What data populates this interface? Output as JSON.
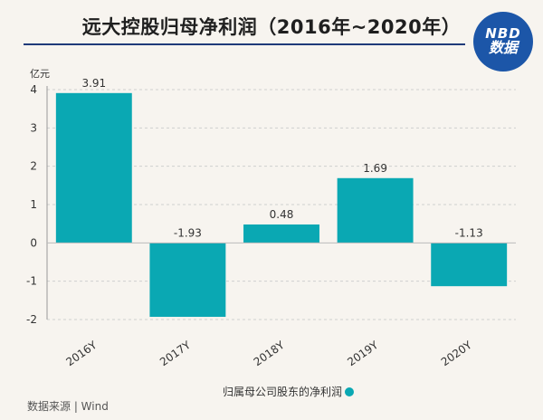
{
  "header": {
    "title": "远大控股归母净利润（2016年~2020年）",
    "logo_line1": "NBD",
    "logo_line2": "数据"
  },
  "footer": {
    "source": "数据来源 | Wind"
  },
  "colors": {
    "bar": "#0aa8b3",
    "title_rule": "#1f3a7a",
    "logo_bg": "#1c56a8"
  },
  "chart_data": {
    "type": "bar",
    "categories": [
      "2016Y",
      "2017Y",
      "2018Y",
      "2019Y",
      "2020Y"
    ],
    "series": [
      {
        "name": "归属母公司股东的净利润",
        "values": [
          3.91,
          -1.93,
          0.48,
          1.69,
          -1.13
        ]
      }
    ],
    "data_labels": [
      "3.91",
      "-1.93",
      "0.48",
      "1.69",
      "-1.13"
    ],
    "title": "远大控股归母净利润（2016年~2020年）",
    "xlabel": "",
    "ylabel": "亿元",
    "ylim": [
      -2,
      4
    ],
    "yticks": [
      4,
      3,
      2,
      1,
      0,
      -1,
      -2
    ],
    "grid": true,
    "legend": "bottom-center"
  }
}
